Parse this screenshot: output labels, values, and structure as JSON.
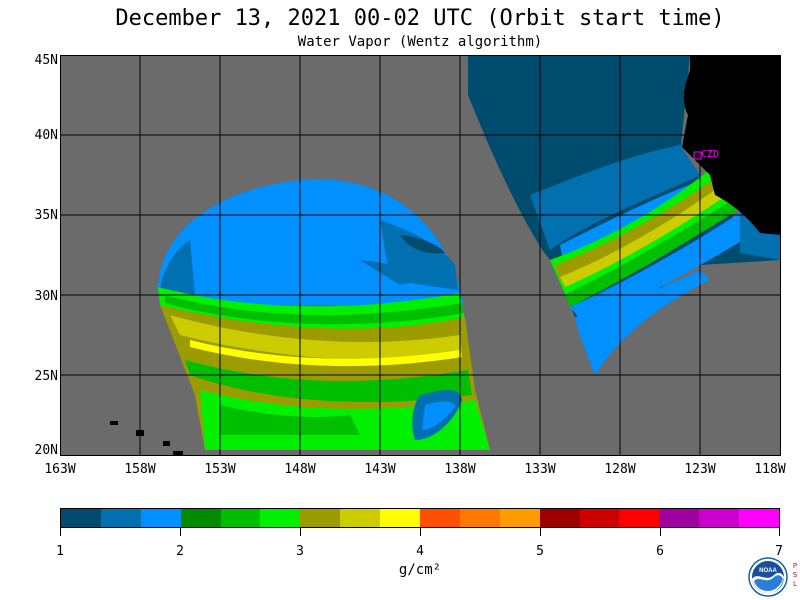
{
  "header": {
    "title": "December 13, 2021  00-02 UTC  (Orbit start time)",
    "subtitle": "Water Vapor (Wentz algorithm)"
  },
  "map": {
    "lat_labels": [
      "45N",
      "40N",
      "35N",
      "30N",
      "25N",
      "20N"
    ],
    "lon_labels": [
      "163W",
      "158W",
      "153W",
      "148W",
      "143W",
      "138W",
      "133W",
      "128W",
      "123W",
      "118W"
    ],
    "station_label": "CZD",
    "colors": {
      "no_data": "#6b6b6b",
      "land": "#000000",
      "grid": "#000000",
      "station": "#ff00ff"
    }
  },
  "colorbar": {
    "colors": [
      "#004c6e",
      "#0070b0",
      "#0090ff",
      "#008c00",
      "#00be00",
      "#00f000",
      "#9c9c00",
      "#cccc00",
      "#ffff00",
      "#ff5000",
      "#ff7800",
      "#ff9c00",
      "#9c0000",
      "#cc0000",
      "#ff0000",
      "#a000a0",
      "#cc00cc",
      "#ff00ff"
    ],
    "ticks": [
      "1",
      "2",
      "3",
      "4",
      "5",
      "6",
      "7"
    ],
    "unit_label": "g/cm²"
  },
  "logo": {
    "icon": "noaa-logo-icon",
    "text": "NOAA",
    "side_text": [
      "P",
      "S",
      "L"
    ]
  }
}
